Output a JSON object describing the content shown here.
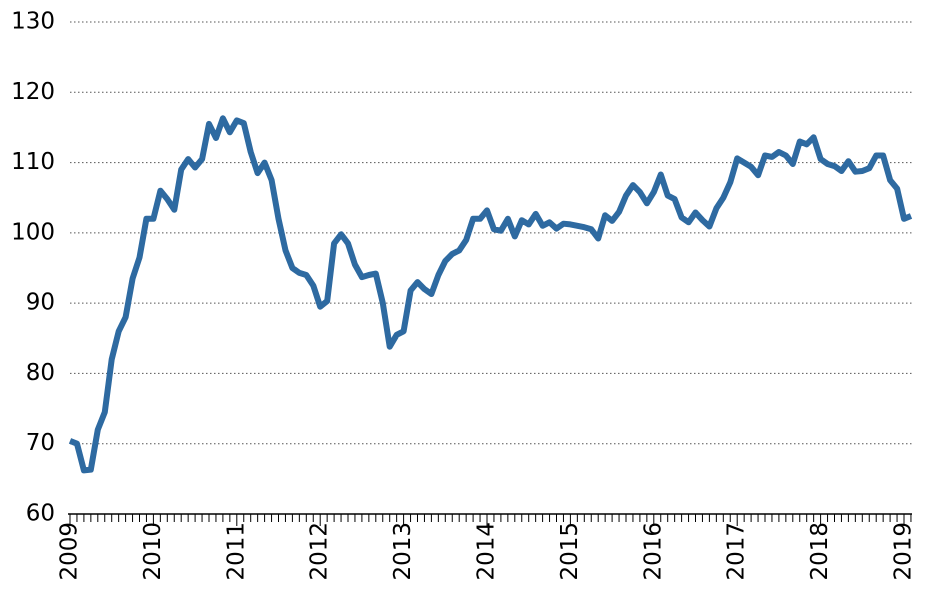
{
  "chart_data": {
    "type": "line",
    "categories": [
      "2009",
      null,
      null,
      null,
      null,
      null,
      null,
      null,
      null,
      null,
      null,
      null,
      "2010",
      null,
      null,
      null,
      null,
      null,
      null,
      null,
      null,
      null,
      null,
      null,
      "2011",
      null,
      null,
      null,
      null,
      null,
      null,
      null,
      null,
      null,
      null,
      null,
      "2012",
      null,
      null,
      null,
      null,
      null,
      null,
      null,
      null,
      null,
      null,
      null,
      "2013",
      null,
      null,
      null,
      null,
      null,
      null,
      null,
      null,
      null,
      null,
      null,
      "2014",
      null,
      null,
      null,
      null,
      null,
      null,
      null,
      null,
      null,
      null,
      null,
      "2015",
      null,
      null,
      null,
      null,
      null,
      null,
      null,
      null,
      null,
      null,
      null,
      "2016",
      null,
      null,
      null,
      null,
      null,
      null,
      null,
      null,
      null,
      null,
      null,
      "2017",
      null,
      null,
      null,
      null,
      null,
      null,
      null,
      null,
      null,
      null,
      null,
      "2018",
      null,
      null,
      null,
      null,
      null,
      null,
      null,
      null,
      null,
      null,
      null,
      "2019",
      null
    ],
    "values": [
      70.4,
      70.0,
      66.2,
      66.3,
      72.0,
      74.5,
      82.0,
      86.0,
      88.0,
      93.5,
      96.5,
      102.0,
      102.0,
      106.0,
      104.8,
      103.3,
      109.0,
      110.5,
      109.3,
      110.5,
      115.5,
      113.5,
      116.3,
      114.3,
      116.0,
      115.6,
      111.5,
      108.5,
      110.0,
      107.5,
      102.0,
      97.5,
      95.0,
      94.3,
      94.0,
      92.5,
      89.5,
      90.3,
      98.5,
      99.8,
      98.5,
      95.5,
      93.7,
      94.0,
      94.2,
      90.0,
      83.8,
      85.5,
      86.0,
      91.8,
      93.0,
      92.0,
      91.3,
      94.0,
      96.0,
      97.0,
      97.5,
      99.0,
      102.0,
      102.0,
      103.2,
      100.5,
      100.3,
      102.0,
      99.5,
      101.8,
      101.2,
      102.7,
      101.0,
      101.5,
      100.6,
      101.3,
      101.2,
      101.0,
      100.8,
      100.5,
      99.2,
      102.5,
      101.7,
      103.0,
      105.3,
      106.8,
      105.8,
      104.2,
      105.8,
      108.3,
      105.3,
      104.8,
      102.2,
      101.5,
      102.9,
      101.8,
      100.9,
      103.5,
      105.0,
      107.2,
      110.6,
      110.0,
      109.4,
      108.2,
      111.0,
      110.8,
      111.5,
      111.0,
      109.8,
      113.0,
      112.6,
      113.6,
      110.5,
      109.8,
      109.5,
      108.8,
      110.2,
      108.7,
      108.8,
      109.2,
      111.0,
      111.0,
      107.5,
      106.3,
      102.0,
      102.4
    ],
    "color": "#2e6aa1",
    "ylim": [
      60,
      130
    ],
    "yticks": [
      60,
      70,
      80,
      90,
      100,
      110,
      120,
      130
    ],
    "grid": true
  }
}
